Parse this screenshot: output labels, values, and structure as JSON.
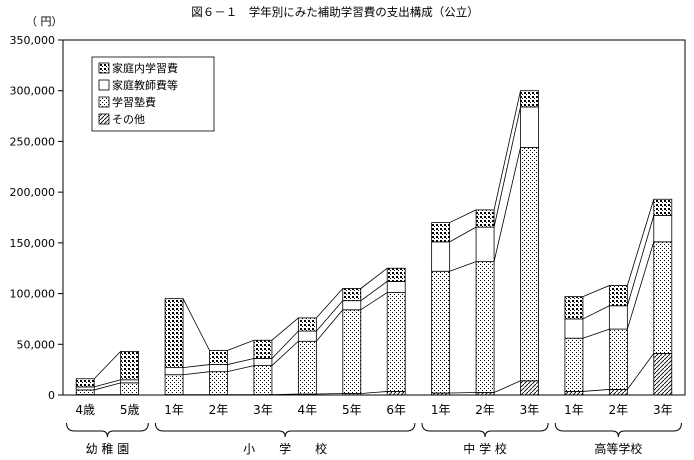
{
  "chart_data": {
    "type": "bar",
    "stacked": true,
    "connector_lines": true,
    "title": "図６－１　学年別にみた補助学習費の支出構成（公立）",
    "yunit": "（ 円）",
    "ylim": [
      0,
      350000
    ],
    "yticks": [
      0,
      50000,
      100000,
      150000,
      200000,
      250000,
      300000,
      350000
    ],
    "ytick_labels": [
      "0",
      "50,000",
      "100,000",
      "150,000",
      "200,000",
      "250,000",
      "300,000",
      "350,000"
    ],
    "grid": false,
    "legend_position": "top-left",
    "categories": [
      "4歳",
      "5歳",
      "1年",
      "2年",
      "3年",
      "4年",
      "5年",
      "6年",
      "1年",
      "2年",
      "3年",
      "1年",
      "2年",
      "3年"
    ],
    "groups": [
      {
        "label": "幼 稚 園",
        "from": 0,
        "to": 1
      },
      {
        "label": "小　　学　　校",
        "from": 2,
        "to": 7
      },
      {
        "label": "中 学 校",
        "from": 8,
        "to": 10
      },
      {
        "label": "高等学校",
        "from": 11,
        "to": 13
      }
    ],
    "series": [
      {
        "name": "その他",
        "pattern": "hatch",
        "values": [
          400,
          400,
          400,
          400,
          400,
          1000,
          1500,
          3500,
          2000,
          2500,
          14000,
          3500,
          5500,
          41000
        ]
      },
      {
        "name": "学習塾費",
        "pattern": "fine-dots",
        "values": [
          4600,
          11600,
          19600,
          22600,
          28600,
          52000,
          82500,
          97500,
          120000,
          129000,
          230000,
          52500,
          59500,
          110000
        ]
      },
      {
        "name": "家庭教師費等",
        "pattern": "white",
        "values": [
          3000,
          3000,
          7000,
          7000,
          7000,
          10000,
          9000,
          11000,
          29000,
          34000,
          40000,
          19000,
          23000,
          26000
        ]
      },
      {
        "name": "家庭内学習費",
        "pattern": "coarse-dots",
        "values": [
          8000,
          28000,
          68000,
          14000,
          18000,
          13000,
          12000,
          13000,
          19000,
          17000,
          16000,
          22000,
          20000,
          16000
        ]
      }
    ],
    "colors": {
      "axis": "#000000",
      "fill": "#ffffff"
    }
  }
}
